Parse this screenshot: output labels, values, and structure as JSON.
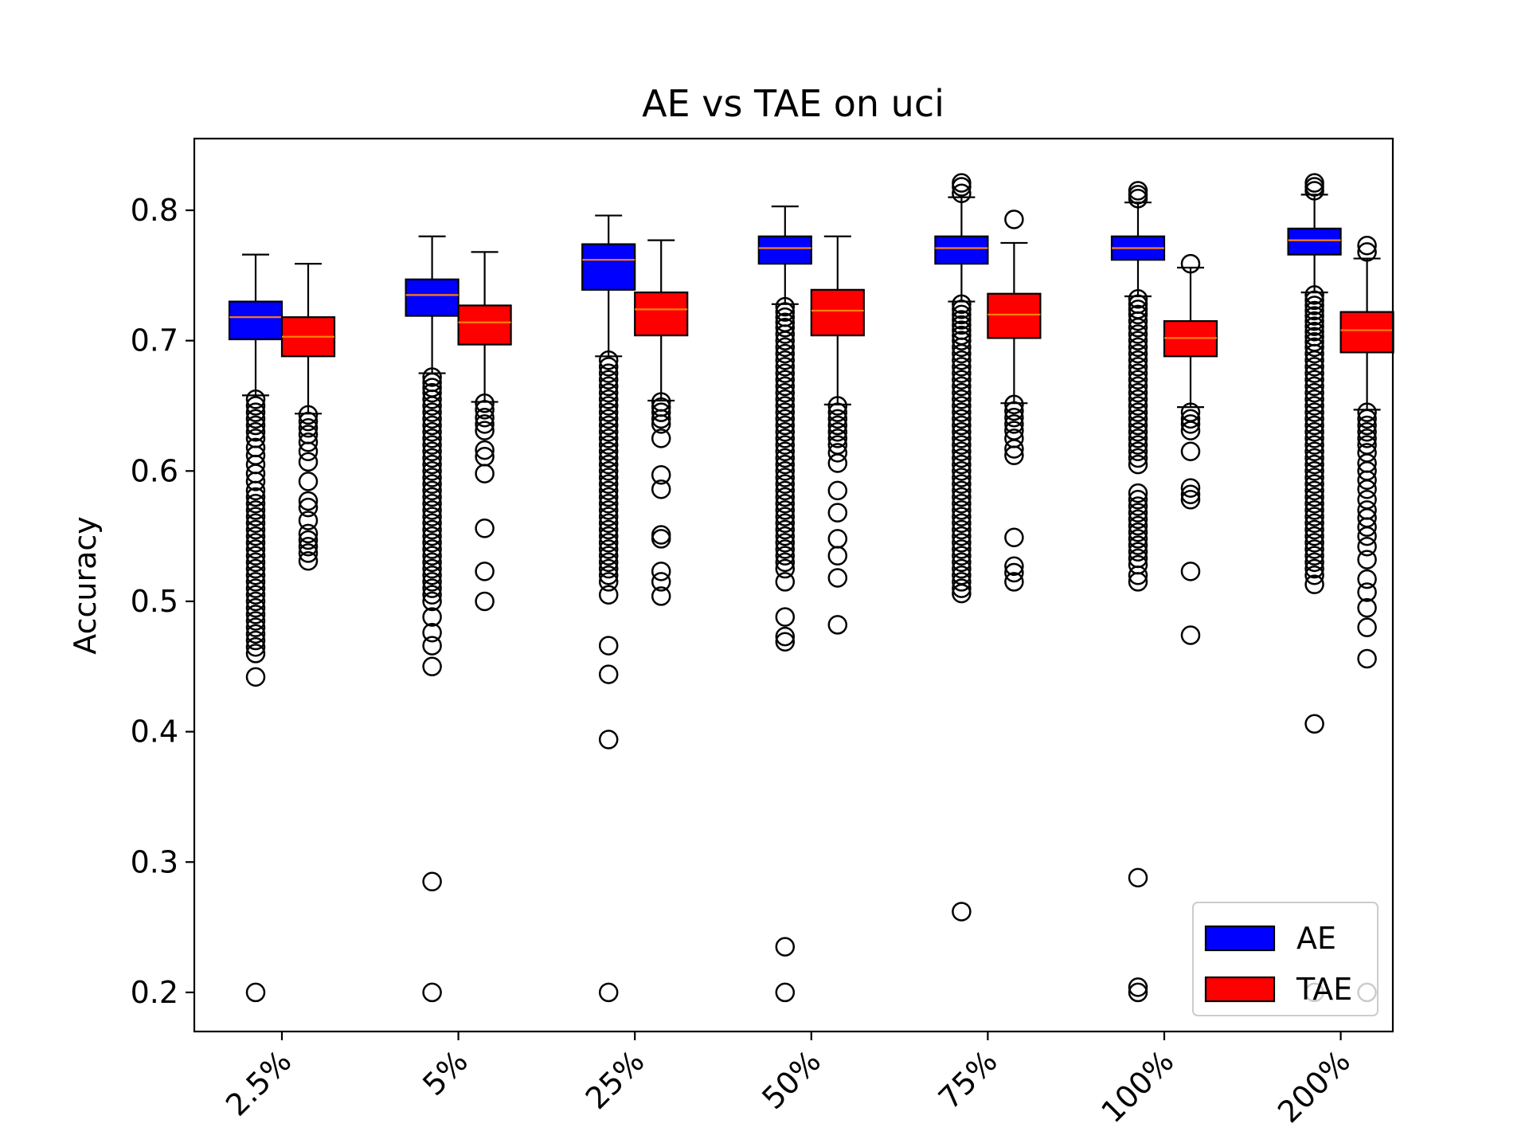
{
  "chart_data": {
    "type": "boxplot",
    "title": "AE vs TAE on uci",
    "xlabel": "",
    "ylabel": "Accuracy",
    "ylim": [
      0.17,
      0.855
    ],
    "yticks": [
      0.2,
      0.3,
      0.4,
      0.5,
      0.6,
      0.7,
      0.8
    ],
    "ytick_labels": [
      "0.2",
      "0.3",
      "0.4",
      "0.5",
      "0.6",
      "0.7",
      "0.8"
    ],
    "categories": [
      "2.5%",
      "5%",
      "25%",
      "50%",
      "75%",
      "100%",
      "200%"
    ],
    "legend": {
      "position": "lower-right",
      "entries": [
        "AE",
        "TAE"
      ]
    },
    "colors": {
      "AE": "#0000ff",
      "TAE": "#ff0000",
      "median": "#ff7f0e",
      "edge": "#000000"
    },
    "series": [
      {
        "name": "AE",
        "boxes": [
          {
            "q1": 0.701,
            "median": 0.718,
            "q3": 0.73,
            "whislo": 0.658,
            "whishi": 0.766,
            "fliers": [
              0.655,
              0.65,
              0.645,
              0.64,
              0.635,
              0.63,
              0.625,
              0.618,
              0.612,
              0.605,
              0.598,
              0.592,
              0.585,
              0.58,
              0.575,
              0.57,
              0.565,
              0.56,
              0.555,
              0.55,
              0.545,
              0.54,
              0.535,
              0.53,
              0.525,
              0.52,
              0.515,
              0.51,
              0.505,
              0.5,
              0.495,
              0.49,
              0.485,
              0.48,
              0.475,
              0.47,
              0.465,
              0.46,
              0.442,
              0.2
            ]
          },
          {
            "q1": 0.719,
            "median": 0.735,
            "q3": 0.747,
            "whislo": 0.675,
            "whishi": 0.78,
            "fliers": [
              0.672,
              0.668,
              0.664,
              0.66,
              0.655,
              0.65,
              0.645,
              0.64,
              0.635,
              0.63,
              0.625,
              0.62,
              0.615,
              0.61,
              0.605,
              0.6,
              0.595,
              0.59,
              0.585,
              0.58,
              0.575,
              0.57,
              0.565,
              0.56,
              0.555,
              0.55,
              0.545,
              0.54,
              0.535,
              0.53,
              0.525,
              0.52,
              0.515,
              0.51,
              0.505,
              0.5,
              0.488,
              0.476,
              0.466,
              0.45,
              0.285,
              0.2
            ]
          },
          {
            "q1": 0.739,
            "median": 0.762,
            "q3": 0.774,
            "whislo": 0.688,
            "whishi": 0.796,
            "fliers": [
              0.685,
              0.68,
              0.675,
              0.67,
              0.665,
              0.66,
              0.655,
              0.65,
              0.645,
              0.64,
              0.635,
              0.63,
              0.625,
              0.62,
              0.615,
              0.61,
              0.605,
              0.6,
              0.595,
              0.59,
              0.585,
              0.58,
              0.575,
              0.57,
              0.565,
              0.56,
              0.555,
              0.55,
              0.545,
              0.54,
              0.535,
              0.53,
              0.525,
              0.52,
              0.515,
              0.505,
              0.466,
              0.444,
              0.394,
              0.2
            ]
          },
          {
            "q1": 0.759,
            "median": 0.771,
            "q3": 0.78,
            "whislo": 0.728,
            "whishi": 0.803,
            "fliers": [
              0.726,
              0.722,
              0.718,
              0.714,
              0.71,
              0.705,
              0.7,
              0.695,
              0.69,
              0.685,
              0.68,
              0.675,
              0.67,
              0.665,
              0.66,
              0.655,
              0.65,
              0.645,
              0.64,
              0.635,
              0.63,
              0.625,
              0.62,
              0.615,
              0.61,
              0.605,
              0.6,
              0.595,
              0.59,
              0.585,
              0.58,
              0.575,
              0.57,
              0.565,
              0.56,
              0.555,
              0.55,
              0.545,
              0.54,
              0.535,
              0.53,
              0.525,
              0.515,
              0.488,
              0.473,
              0.469,
              0.235,
              0.2
            ]
          },
          {
            "q1": 0.759,
            "median": 0.771,
            "q3": 0.78,
            "whislo": 0.73,
            "whishi": 0.81,
            "fliers": [
              0.821,
              0.818,
              0.813,
              0.728,
              0.724,
              0.72,
              0.716,
              0.712,
              0.708,
              0.704,
              0.7,
              0.695,
              0.69,
              0.685,
              0.68,
              0.675,
              0.67,
              0.665,
              0.66,
              0.655,
              0.65,
              0.645,
              0.64,
              0.635,
              0.63,
              0.625,
              0.62,
              0.615,
              0.61,
              0.605,
              0.6,
              0.595,
              0.59,
              0.585,
              0.58,
              0.575,
              0.57,
              0.565,
              0.56,
              0.555,
              0.55,
              0.545,
              0.54,
              0.535,
              0.53,
              0.525,
              0.52,
              0.515,
              0.51,
              0.506,
              0.262
            ]
          },
          {
            "q1": 0.762,
            "median": 0.771,
            "q3": 0.78,
            "whislo": 0.734,
            "whishi": 0.806,
            "fliers": [
              0.815,
              0.812,
              0.809,
              0.732,
              0.728,
              0.724,
              0.72,
              0.715,
              0.71,
              0.705,
              0.7,
              0.695,
              0.69,
              0.685,
              0.68,
              0.675,
              0.67,
              0.665,
              0.66,
              0.655,
              0.65,
              0.645,
              0.64,
              0.635,
              0.63,
              0.625,
              0.62,
              0.615,
              0.61,
              0.605,
              0.583,
              0.578,
              0.573,
              0.568,
              0.563,
              0.558,
              0.553,
              0.548,
              0.543,
              0.538,
              0.533,
              0.528,
              0.52,
              0.515,
              0.288,
              0.204,
              0.2
            ]
          },
          {
            "q1": 0.766,
            "median": 0.777,
            "q3": 0.786,
            "whislo": 0.737,
            "whishi": 0.812,
            "fliers": [
              0.821,
              0.818,
              0.815,
              0.735,
              0.731,
              0.727,
              0.723,
              0.719,
              0.715,
              0.711,
              0.707,
              0.703,
              0.699,
              0.695,
              0.69,
              0.685,
              0.68,
              0.675,
              0.67,
              0.665,
              0.66,
              0.655,
              0.65,
              0.645,
              0.64,
              0.635,
              0.63,
              0.625,
              0.62,
              0.615,
              0.61,
              0.605,
              0.6,
              0.595,
              0.59,
              0.585,
              0.58,
              0.575,
              0.57,
              0.565,
              0.56,
              0.555,
              0.55,
              0.545,
              0.54,
              0.535,
              0.53,
              0.525,
              0.52,
              0.513,
              0.406,
              0.2
            ]
          }
        ]
      },
      {
        "name": "TAE",
        "boxes": [
          {
            "q1": 0.688,
            "median": 0.703,
            "q3": 0.718,
            "whislo": 0.644,
            "whishi": 0.759,
            "fliers": [
              0.643,
              0.638,
              0.633,
              0.628,
              0.622,
              0.615,
              0.607,
              0.592,
              0.577,
              0.572,
              0.562,
              0.552,
              0.547,
              0.542,
              0.537,
              0.531
            ]
          },
          {
            "q1": 0.697,
            "median": 0.714,
            "q3": 0.727,
            "whislo": 0.653,
            "whishi": 0.768,
            "fliers": [
              0.652,
              0.647,
              0.641,
              0.636,
              0.631,
              0.616,
              0.611,
              0.598,
              0.556,
              0.523,
              0.5
            ]
          },
          {
            "q1": 0.704,
            "median": 0.724,
            "q3": 0.737,
            "whislo": 0.654,
            "whishi": 0.777,
            "fliers": [
              0.653,
              0.649,
              0.645,
              0.64,
              0.636,
              0.625,
              0.597,
              0.586,
              0.551,
              0.548,
              0.523,
              0.515,
              0.504
            ]
          },
          {
            "q1": 0.704,
            "median": 0.723,
            "q3": 0.739,
            "whislo": 0.651,
            "whishi": 0.78,
            "fliers": [
              0.65,
              0.645,
              0.64,
              0.635,
              0.63,
              0.625,
              0.62,
              0.614,
              0.606,
              0.585,
              0.568,
              0.548,
              0.535,
              0.518,
              0.482
            ]
          },
          {
            "q1": 0.702,
            "median": 0.72,
            "q3": 0.736,
            "whislo": 0.652,
            "whishi": 0.775,
            "fliers": [
              0.793,
              0.651,
              0.646,
              0.641,
              0.636,
              0.631,
              0.625,
              0.617,
              0.612,
              0.549,
              0.527,
              0.522,
              0.515
            ]
          },
          {
            "q1": 0.688,
            "median": 0.702,
            "q3": 0.715,
            "whislo": 0.649,
            "whishi": 0.756,
            "fliers": [
              0.759,
              0.645,
              0.64,
              0.636,
              0.631,
              0.615,
              0.587,
              0.582,
              0.578,
              0.523,
              0.474
            ]
          },
          {
            "q1": 0.691,
            "median": 0.708,
            "q3": 0.722,
            "whislo": 0.647,
            "whishi": 0.763,
            "fliers": [
              0.773,
              0.768,
              0.645,
              0.64,
              0.635,
              0.63,
              0.625,
              0.62,
              0.614,
              0.606,
              0.6,
              0.593,
              0.586,
              0.578,
              0.57,
              0.564,
              0.557,
              0.55,
              0.542,
              0.532,
              0.517,
              0.507,
              0.495,
              0.48,
              0.456,
              0.2
            ]
          }
        ]
      }
    ]
  }
}
